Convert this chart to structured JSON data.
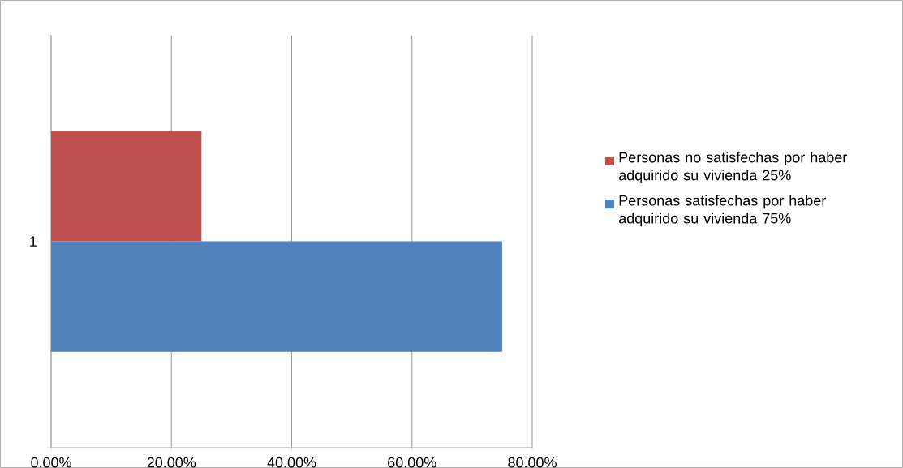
{
  "chart_data": {
    "type": "bar",
    "orientation": "horizontal",
    "categories": [
      "1"
    ],
    "series": [
      {
        "name": "Personas no satisfechas por haber adquirido su vivienda 25%",
        "color": "#c0504d",
        "values": [
          25
        ]
      },
      {
        "name": "Personas satisfechas por haber adquirido su vivienda 75%",
        "color": "#4f81bd",
        "values": [
          75
        ]
      }
    ],
    "xlim": [
      0,
      80
    ],
    "xticks": [
      {
        "value": 0,
        "label": "0.00%"
      },
      {
        "value": 20,
        "label": "20.00%"
      },
      {
        "value": 40,
        "label": "40.00%"
      },
      {
        "value": 60,
        "label": "60.00%"
      },
      {
        "value": 80,
        "label": "80.00%"
      }
    ],
    "grid": "x",
    "legend": "right"
  }
}
